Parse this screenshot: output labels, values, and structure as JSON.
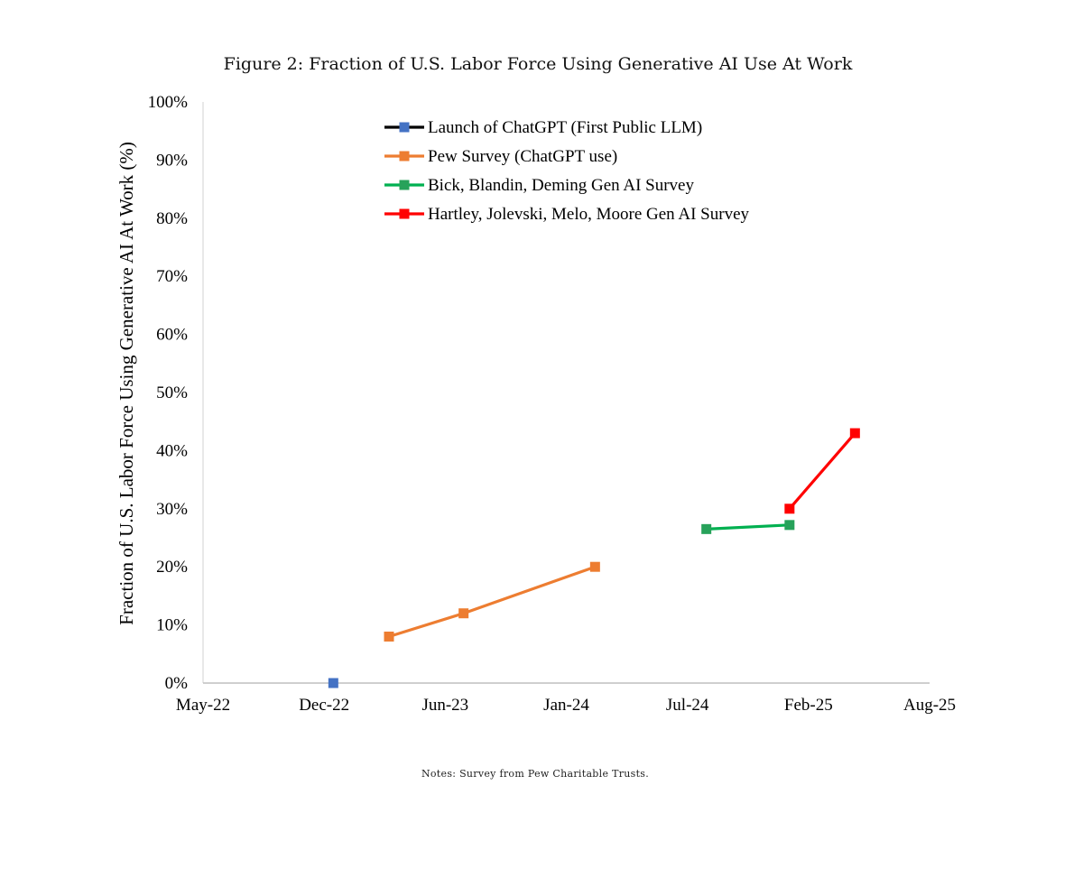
{
  "figure": {
    "title": "Figure 2: Fraction of U.S. Labor Force Using Generative AI Use At Work",
    "notes": "Notes: Survey from Pew Charitable Trusts."
  },
  "chart_data": {
    "type": "line",
    "title": "",
    "xlabel": "",
    "ylabel": "Fraction of U.S. Labor Force Using Generative AI At Work (%)",
    "x_ticks": [
      "May-22",
      "Dec-22",
      "Jun-23",
      "Jan-24",
      "Jul-24",
      "Feb-25",
      "Aug-25"
    ],
    "xlim": [
      "2022-05-01",
      "2025-08-01"
    ],
    "y_ticks": [
      "0%",
      "10%",
      "20%",
      "30%",
      "40%",
      "50%",
      "60%",
      "70%",
      "80%",
      "90%",
      "100%"
    ],
    "ylim": [
      0,
      100
    ],
    "grid": false,
    "legend_position": "top-center",
    "series": [
      {
        "name": "Launch of ChatGPT (First Public LLM)",
        "line_color": "#000000",
        "marker_color": "#4472c4",
        "points": [
          {
            "x": "2022-11-30",
            "y": 0
          }
        ]
      },
      {
        "name": "Pew Survey (ChatGPT use)",
        "line_color": "#ed7d31",
        "marker_color": "#ed7d31",
        "points": [
          {
            "x": "2023-03-01",
            "y": 8
          },
          {
            "x": "2023-07-01",
            "y": 12
          },
          {
            "x": "2024-02-01",
            "y": 20
          }
        ]
      },
      {
        "name": "Bick, Blandin, Deming Gen AI Survey",
        "line_color": "#00b050",
        "marker_color": "#27a25a",
        "points": [
          {
            "x": "2024-08-01",
            "y": 26.5
          },
          {
            "x": "2024-12-15",
            "y": 27.2
          }
        ]
      },
      {
        "name": "Hartley, Jolevski, Melo, Moore Gen AI Survey",
        "line_color": "#ff0000",
        "marker_color": "#ff0000",
        "points": [
          {
            "x": "2024-12-15",
            "y": 30
          },
          {
            "x": "2025-04-01",
            "y": 43
          }
        ]
      }
    ]
  }
}
